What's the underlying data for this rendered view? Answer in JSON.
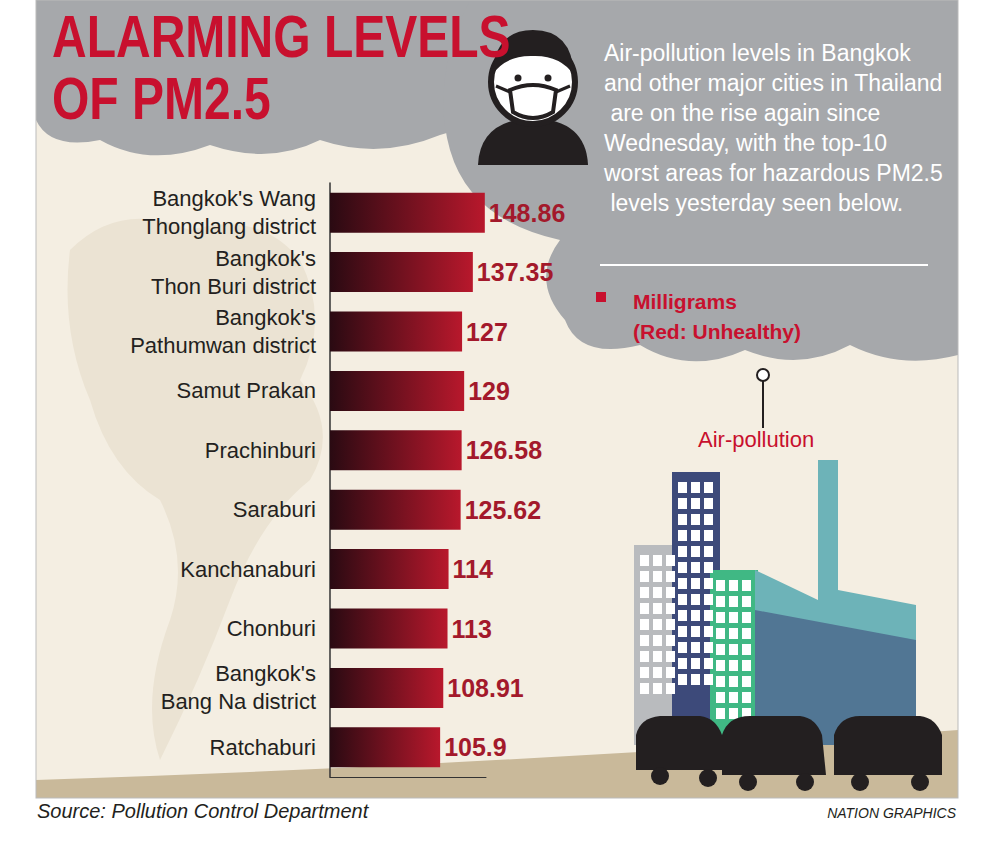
{
  "chart_data": {
    "type": "bar",
    "orientation": "horizontal",
    "title": "ALARMING LEVELS\nOF PM2.5",
    "subtitle": "Air-pollution levels in Bangkok and other major cities in Thailand are on the rise again since Wednesday, with the top-10 worst areas for hazardous PM2.5 levels yesterday seen below.",
    "annotations": [
      "Milligrams\n(Red: Unhealthy)",
      "Air-pollution",
      "Source: Pollution Control Department",
      "NATION GRAPHICS"
    ],
    "categories": [
      "Bangkok's Wang\nThonglang district",
      "Bangkok's\nThon Buri district",
      "Bangkok's\nPathumwan district",
      "Samut Prakan",
      "Prachinburi",
      "Saraburi",
      "Kanchanaburi",
      "Chonburi",
      "Bangkok's\nBang Na district",
      "Ratchaburi"
    ],
    "values": [
      148.86,
      137.35,
      127,
      129,
      126.58,
      125.62,
      114,
      113,
      108.91,
      105.9
    ],
    "color": "#b8182c",
    "xlim": [
      0,
      150
    ],
    "xticks": [],
    "grid": false,
    "data_labels": true,
    "tick_labels": "y"
  }
}
